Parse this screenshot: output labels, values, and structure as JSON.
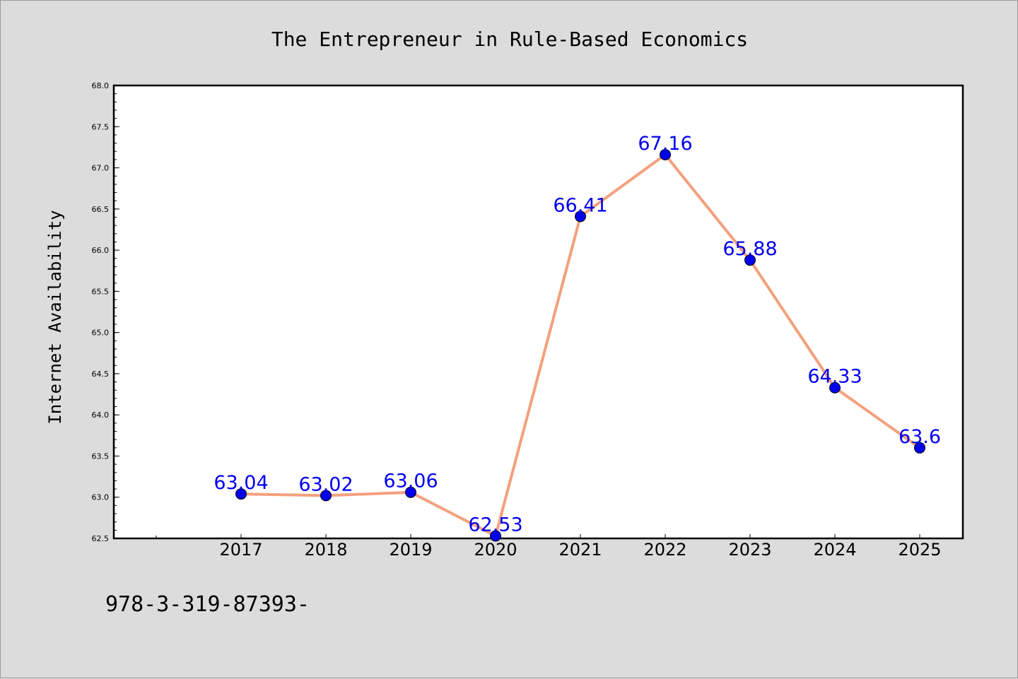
{
  "chart_data": {
    "type": "line",
    "title": "The Entrepreneur in Rule-Based Economics",
    "ylabel": "Internet Availability",
    "categories": [
      "2017",
      "2018",
      "2019",
      "2020",
      "2021",
      "2022",
      "2023",
      "2024",
      "2025"
    ],
    "values": [
      63.04,
      63.02,
      63.06,
      62.53,
      66.41,
      67.16,
      65.88,
      64.33,
      63.6
    ],
    "data_labels": [
      "63.04",
      "63.02",
      "63.06",
      "62.53",
      "66.41",
      "67.16",
      "65.88",
      "64.33",
      "63.6"
    ],
    "ylim": [
      62.5,
      68.0
    ],
    "yticks": [
      62.5,
      63.0,
      63.5,
      64.0,
      64.5,
      65.0,
      65.5,
      66.0,
      66.5,
      67.0,
      67.5,
      68.0
    ],
    "ytick_labels": [
      "62.5",
      "63.0",
      "63.5",
      "64.0",
      "64.5",
      "65.0",
      "65.5",
      "66.0",
      "66.5",
      "67.0",
      "67.5",
      "68.0"
    ],
    "grid": false,
    "line_color": "#f4a07e",
    "marker_color": "#0000ee",
    "label_color": "#0000ee"
  },
  "footer": {
    "text": "978-3-319-87393-"
  }
}
